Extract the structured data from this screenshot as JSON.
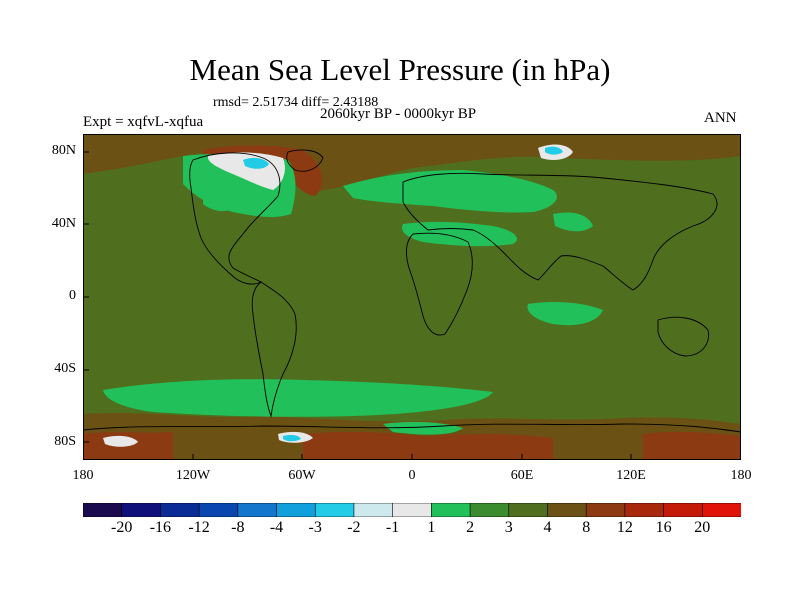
{
  "title": "Mean Sea Level Pressure (in hPa)",
  "stats_text": "rmsd= 2.51734  diff= 2.43188",
  "period_text": "2060kyr BP - 0000kyr BP",
  "expt_text": "Expt = xqfvL-xqfua",
  "season_text": "ANN",
  "lat_labels": [
    "80N",
    "40N",
    "0",
    "40S",
    "80S"
  ],
  "lon_labels": [
    "180",
    "120W",
    "60W",
    "0",
    "60E",
    "120E",
    "180"
  ],
  "colorbar": {
    "labels": [
      "-20",
      "-16",
      "-12",
      "-8",
      "-4",
      "-3",
      "-2",
      "-1",
      "1",
      "2",
      "3",
      "4",
      "8",
      "12",
      "16",
      "20"
    ],
    "colors": [
      "#1a0a4e",
      "#10107a",
      "#0a2b96",
      "#0a46b0",
      "#1276cc",
      "#12a0dc",
      "#22cce6",
      "#cde9ee",
      "#e8e8e8",
      "#22c05a",
      "#3b8c2e",
      "#4f6e1e",
      "#6b5214",
      "#8c3a12",
      "#a8280c",
      "#c41a08",
      "#e01408"
    ]
  },
  "colors": {
    "background_field": "#4f6e1e",
    "land_outline": "#000000"
  }
}
